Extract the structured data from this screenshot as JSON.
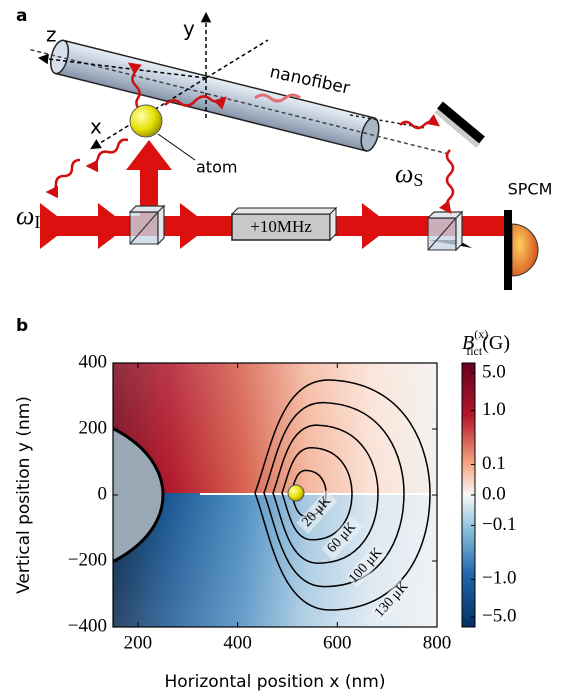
{
  "diagram": {
    "panel_label": "a",
    "axis_z": "z",
    "axis_y": "y",
    "axis_x": "x",
    "fiber_label": "nanofiber",
    "atom_label": "atom",
    "omega_I": {
      "symbol": "ω",
      "sub": "I"
    },
    "omega_S": {
      "symbol": "ω",
      "sub": "S"
    },
    "shifter": "+10MHz",
    "detector": "SPCM"
  },
  "chart_data": {
    "type": "heatmap",
    "panel_label": "b",
    "x_label": "Horizontal position x (nm)",
    "y_label": "Vertical position y (nm)",
    "xlim": [
      150,
      800
    ],
    "xticks": [
      200,
      400,
      600,
      800
    ],
    "ylim": [
      -400,
      400
    ],
    "yticks": [
      {
        "value": -400,
        "label": "−400"
      },
      {
        "value": -200,
        "label": "−200"
      },
      0,
      200,
      400
    ],
    "colorbar": {
      "title": {
        "symbol": "B",
        "sup": "(x)",
        "sub": "fict",
        "unit": "(G)"
      },
      "scale": "symlog",
      "linthresh": 0.1,
      "clim": [
        -7.7,
        7.7
      ],
      "ticks": [
        {
          "value": 5,
          "label": "5.0"
        },
        {
          "value": 1,
          "label": "1.0"
        },
        0.1,
        {
          "value": 0,
          "label": "0.0"
        },
        {
          "value": -0.1,
          "label": "−0.1"
        },
        {
          "value": -1,
          "label": "−1.0"
        },
        {
          "value": -5,
          "label": "−5.0"
        }
      ]
    },
    "contours": [
      {
        "label": "20 μK"
      },
      {
        "label": "60 μK"
      },
      {
        "label": "100 μK"
      },
      {
        "label": "130 μK"
      }
    ]
  }
}
